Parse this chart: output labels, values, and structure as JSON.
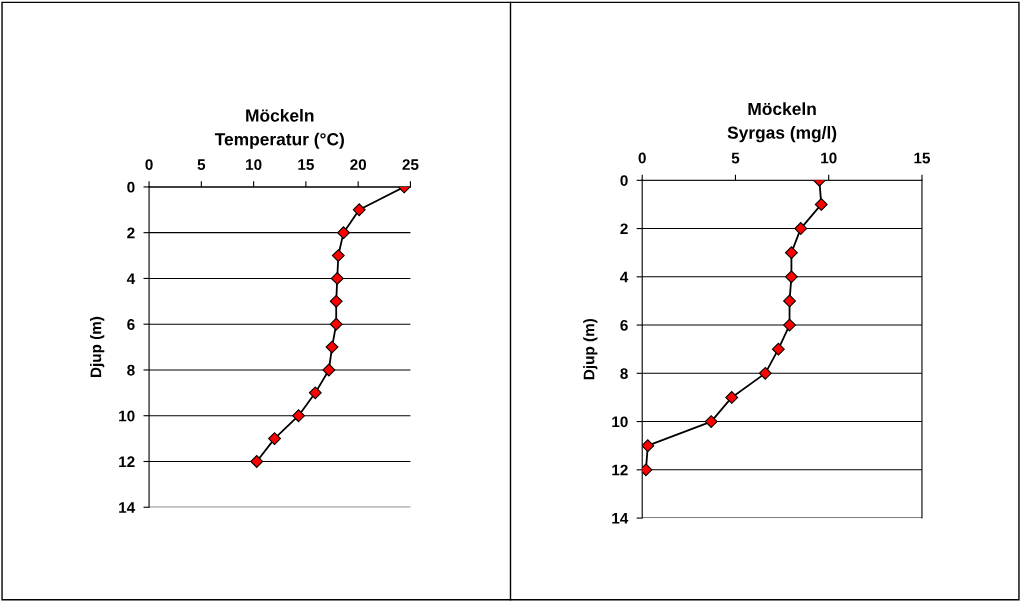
{
  "chart_data": [
    {
      "type": "line",
      "title": "Möckeln\nTemperatur (°C)",
      "ylabel": "Djup (m)",
      "series": [
        {
          "color": "#000000",
          "x": [
            24.4,
            20.1,
            18.6,
            18.1,
            18.0,
            17.9,
            17.9,
            17.5,
            17.2,
            15.9,
            14.3,
            12.0,
            10.3
          ],
          "values": [
            0,
            1,
            2,
            3,
            4,
            5,
            6,
            7,
            8,
            9,
            10,
            11,
            12
          ]
        }
      ],
      "xlim": [
        0,
        25
      ],
      "xticks": [
        0,
        5,
        10,
        15,
        20,
        25
      ],
      "ylim": [
        14,
        0
      ],
      "yticks": [
        0,
        2,
        4,
        6,
        8,
        10,
        12,
        14
      ],
      "grid": "y",
      "marker": "diamond",
      "line_style": "solid"
    },
    {
      "type": "line",
      "title": "Möckeln\nSyrgas (mg/l)",
      "ylabel": "Djup (m)",
      "series": [
        {
          "color": "#000000",
          "x": [
            9.5,
            9.6,
            8.5,
            8.0,
            8.0,
            7.9,
            7.9,
            7.3,
            6.6,
            4.8,
            3.7,
            0.3,
            0.2
          ],
          "values": [
            0,
            1,
            2,
            3,
            4,
            5,
            6,
            7,
            8,
            9,
            10,
            11,
            12
          ]
        }
      ],
      "xlim": [
        0,
        15
      ],
      "xticks": [
        0,
        5,
        10,
        15
      ],
      "ylim": [
        14,
        0
      ],
      "yticks": [
        0,
        2,
        4,
        6,
        8,
        10,
        12,
        14
      ],
      "grid": "y",
      "marker": "diamond",
      "line_style": "solid"
    }
  ]
}
